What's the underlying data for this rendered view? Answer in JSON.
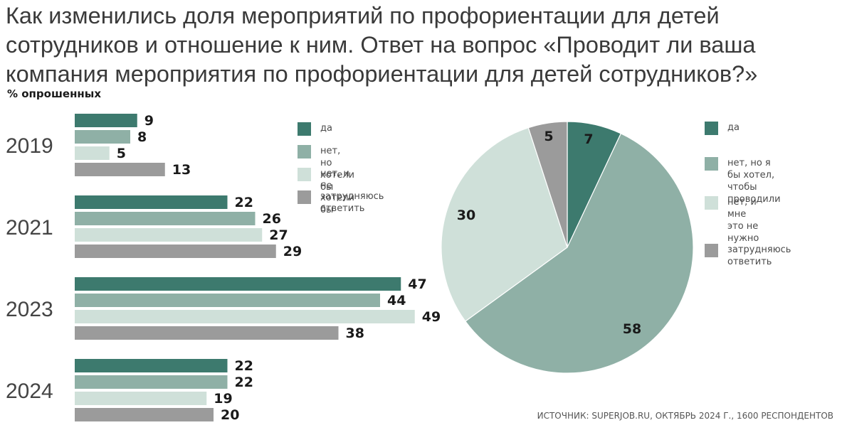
{
  "title": "Как изменились доля мероприятий по профориентации для детей сотрудников и отношение к ним. Ответ на вопрос «Проводит ли ваша компания мероприятия по профориентации для детей сотрудников?»",
  "subtitle": "% опрошенных",
  "source": "ИСТОЧНИК: SUPERJOB.RU, ОКТЯБРЬ 2024 Г., 1600 РЕСПОНДЕНТОВ",
  "colors": {
    "dark_teal": "#3d7a6e",
    "mid_teal": "#8fb0a6",
    "pale_teal": "#cfe0d9",
    "gray": "#9b9b9b"
  },
  "bar_legend": [
    {
      "label": "да",
      "color": "#3d7a6e"
    },
    {
      "label": "нет, но хотели бы",
      "color": "#8fb0a6"
    },
    {
      "label": "нет, и не хотели бы",
      "color": "#cfe0d9"
    },
    {
      "label": "затрудняюсь ответить",
      "color": "#9b9b9b"
    }
  ],
  "pie_legend": [
    {
      "label": "да",
      "color": "#3d7a6e"
    },
    {
      "label": "нет, но я бы хотел,\nчтобы проводили",
      "color": "#8fb0a6"
    },
    {
      "label": "нет, и мне\nэто не нужно",
      "color": "#cfe0d9"
    },
    {
      "label": "затрудняюсь\nответить",
      "color": "#9b9b9b"
    }
  ],
  "chart_data": [
    {
      "type": "bar",
      "orientation": "horizontal",
      "categories": [
        "2019",
        "2021",
        "2023",
        "2024"
      ],
      "series": [
        {
          "name": "да",
          "values": [
            9,
            22,
            47,
            22
          ]
        },
        {
          "name": "нет, но хотели бы",
          "values": [
            8,
            26,
            44,
            22
          ]
        },
        {
          "name": "нет, и не хотели бы",
          "values": [
            5,
            27,
            49,
            19
          ]
        },
        {
          "name": "затрудняюсь ответить",
          "values": [
            13,
            29,
            38,
            20
          ]
        }
      ],
      "legend_position": "right",
      "grid": false
    },
    {
      "type": "pie",
      "labels": [
        "да",
        "нет, но я бы хотел, чтобы проводили",
        "нет, и мне это не нужно",
        "затрудняюсь ответить"
      ],
      "values": [
        7,
        58,
        30,
        5
      ],
      "legend_position": "right"
    }
  ]
}
